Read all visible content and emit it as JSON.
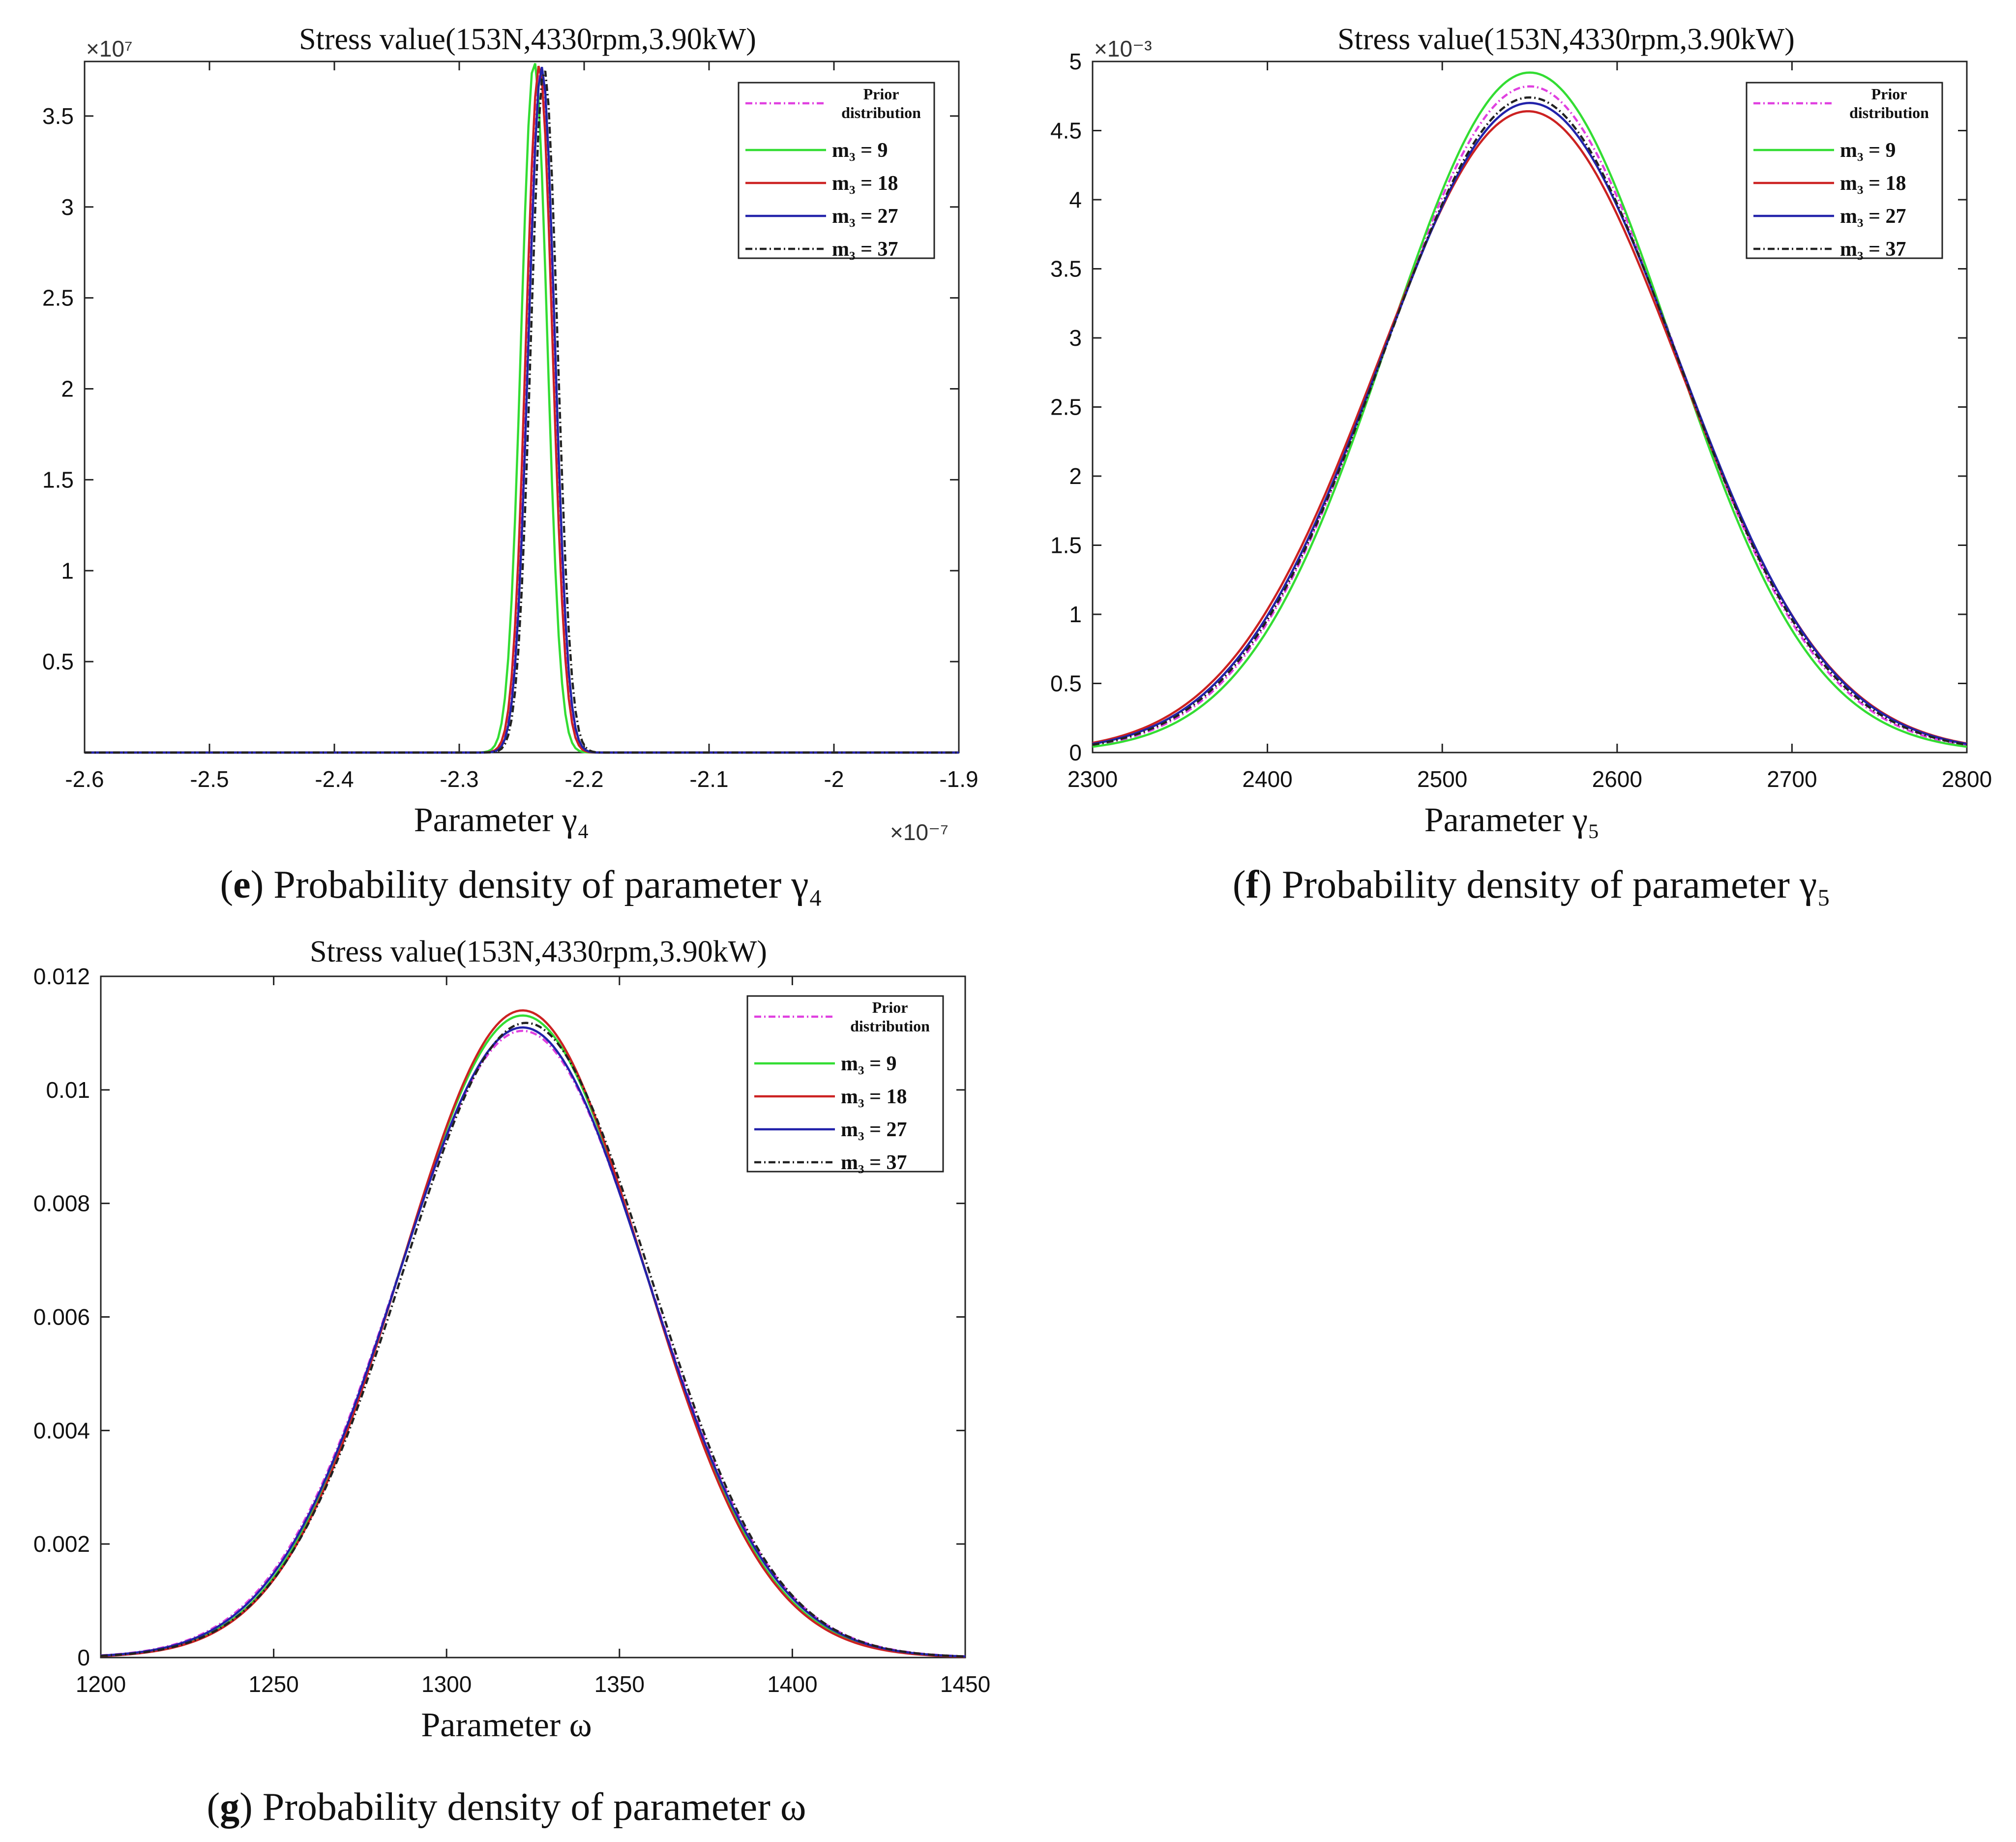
{
  "figure": {
    "panels": [
      {
        "caption": {
          "letter": "e",
          "text": ") Probability density of parameter  γ₄"
        },
        "chart_data": {
          "type": "line",
          "title": "Stress value(153N,4330rpm,3.90kW)",
          "xlabel": "Parameter γ₄",
          "ylabel": "",
          "x_exponent_label": "×10⁻⁷",
          "y_exponent_label": "×10⁷",
          "xlim": [
            -2.6,
            -1.9
          ],
          "ylim": [
            0,
            3.8
          ],
          "xticks": [
            -2.6,
            -2.5,
            -2.4,
            -2.3,
            -2.2,
            -2.1,
            -2.0,
            -1.9
          ],
          "xtick_labels": [
            "-2.6",
            "-2.5",
            "-2.4",
            "-2.3",
            "-2.2",
            "-2.1",
            "-2",
            "-1.9"
          ],
          "yticks": [
            0.5,
            1,
            1.5,
            2,
            2.5,
            3,
            3.5
          ],
          "ytick_labels": [
            "0.5",
            "1",
            "1.5",
            "2",
            "2.5",
            "3",
            "3.5"
          ],
          "legend_position": "top-right",
          "series": [
            {
              "name": "Prior distribution",
              "label_line1": "Prior",
              "label_line2": "distribution",
              "color": "#e040e0",
              "dash": "dashdot",
              "mean": -2.235,
              "sd": 0.0105,
              "peak": 3.77
            },
            {
              "name": "m3 = 9",
              "label": "m₃ = 9",
              "color": "#33dd33",
              "dash": "solid",
              "mean": -2.24,
              "sd": 0.0104,
              "peak": 3.8
            },
            {
              "name": "m3 = 18",
              "label": "m₃ = 18",
              "color": "#cc2222",
              "dash": "solid",
              "mean": -2.236,
              "sd": 0.0105,
              "peak": 3.78
            },
            {
              "name": "m3 = 27",
              "label": "m₃ = 27",
              "color": "#2222aa",
              "dash": "solid",
              "mean": -2.234,
              "sd": 0.0105,
              "peak": 3.77
            },
            {
              "name": "m3 = 37",
              "label": "m₃ = 37",
              "color": "#222222",
              "dash": "dashdot",
              "mean": -2.232,
              "sd": 0.0106,
              "peak": 3.76
            }
          ]
        }
      },
      {
        "caption": {
          "letter": "f",
          "text": ") Probability density of parameter  γ₅"
        },
        "chart_data": {
          "type": "line",
          "title": "Stress value(153N,4330rpm,3.90kW)",
          "xlabel": "Parameter γ₅",
          "ylabel": "",
          "x_exponent_label": "",
          "y_exponent_label": "×10⁻³",
          "xlim": [
            2300,
            2800
          ],
          "ylim": [
            0,
            5
          ],
          "xticks": [
            2300,
            2400,
            2500,
            2600,
            2700,
            2800
          ],
          "xtick_labels": [
            "2300",
            "2400",
            "2500",
            "2600",
            "2700",
            "2800"
          ],
          "yticks": [
            0,
            0.5,
            1,
            1.5,
            2,
            2.5,
            3,
            3.5,
            4,
            4.5,
            5
          ],
          "ytick_labels": [
            "0",
            "0.5",
            "1",
            "1.5",
            "2",
            "2.5",
            "3",
            "3.5",
            "4",
            "4.5",
            "5"
          ],
          "legend_position": "top-right",
          "series": [
            {
              "name": "Prior distribution",
              "label_line1": "Prior",
              "label_line2": "distribution",
              "color": "#e040e0",
              "dash": "dashdot",
              "mean": 2550,
              "sd": 83,
              "peak": 4.82
            },
            {
              "name": "m3 = 9",
              "label": "m₃ = 9",
              "color": "#33dd33",
              "dash": "solid",
              "mean": 2550,
              "sd": 81,
              "peak": 4.92
            },
            {
              "name": "m3 = 18",
              "label": "m₃ = 18",
              "color": "#cc2222",
              "dash": "solid",
              "mean": 2549,
              "sd": 86,
              "peak": 4.64
            },
            {
              "name": "m3 = 27",
              "label": "m₃ = 27",
              "color": "#2222aa",
              "dash": "solid",
              "mean": 2550,
              "sd": 85,
              "peak": 4.7
            },
            {
              "name": "m3 = 37",
              "label": "m₃ = 37",
              "color": "#222222",
              "dash": "dashdot",
              "mean": 2550,
              "sd": 84,
              "peak": 4.74
            }
          ]
        }
      },
      {
        "caption": {
          "letter": "g",
          "text": ") Probability density of parameter  ω"
        },
        "chart_data": {
          "type": "line",
          "title": "Stress value(153N,4330rpm,3.90kW)",
          "xlabel": "Parameter ω",
          "ylabel": "",
          "x_exponent_label": "",
          "y_exponent_label": "",
          "xlim": [
            1200,
            1450
          ],
          "ylim": [
            0,
            0.012
          ],
          "xticks": [
            1200,
            1250,
            1300,
            1350,
            1400,
            1450
          ],
          "xtick_labels": [
            "1200",
            "1250",
            "1300",
            "1350",
            "1400",
            "1450"
          ],
          "yticks": [
            0,
            0.002,
            0.004,
            0.006,
            0.008,
            0.01,
            0.012
          ],
          "ytick_labels": [
            "0",
            "0.002",
            "0.004",
            "0.006",
            "0.008",
            "0.01",
            "0.012"
          ],
          "legend_position": "top-right",
          "series": [
            {
              "name": "Prior distribution",
              "label_line1": "Prior",
              "label_line2": "distribution",
              "color": "#e040e0",
              "dash": "dashdot",
              "mean": 1322,
              "sd": 36.2,
              "peak": 0.01104
            },
            {
              "name": "m3 = 9",
              "label": "m₃ = 9",
              "color": "#33dd33",
              "dash": "solid",
              "mean": 1322,
              "sd": 35.3,
              "peak": 0.01131
            },
            {
              "name": "m3 = 18",
              "label": "m₃ = 18",
              "color": "#cc2222",
              "dash": "solid",
              "mean": 1322,
              "sd": 35.0,
              "peak": 0.0114
            },
            {
              "name": "m3 = 27",
              "label": "m₃ = 27",
              "color": "#2222aa",
              "dash": "solid",
              "mean": 1322,
              "sd": 35.9,
              "peak": 0.0111
            },
            {
              "name": "m3 = 37",
              "label": "m₃ = 37",
              "color": "#222222",
              "dash": "dashdot",
              "mean": 1323,
              "sd": 35.7,
              "peak": 0.01118
            }
          ]
        }
      }
    ]
  }
}
